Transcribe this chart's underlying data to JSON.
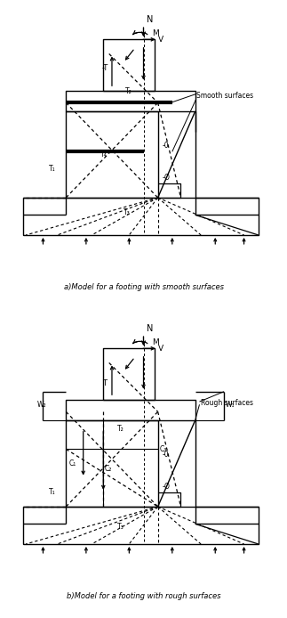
{
  "fig_width": 3.23,
  "fig_height": 6.94,
  "dpi": 100,
  "bg_color": "#ffffff",
  "lc": "#1a1a1a",
  "caption_a": "a)Model for a footing with smooth surfaces",
  "caption_b": "b)Model for a footing with rough surfaces",
  "smooth_label": "Smooth surfaces",
  "rough_label": "Rough surfaces"
}
